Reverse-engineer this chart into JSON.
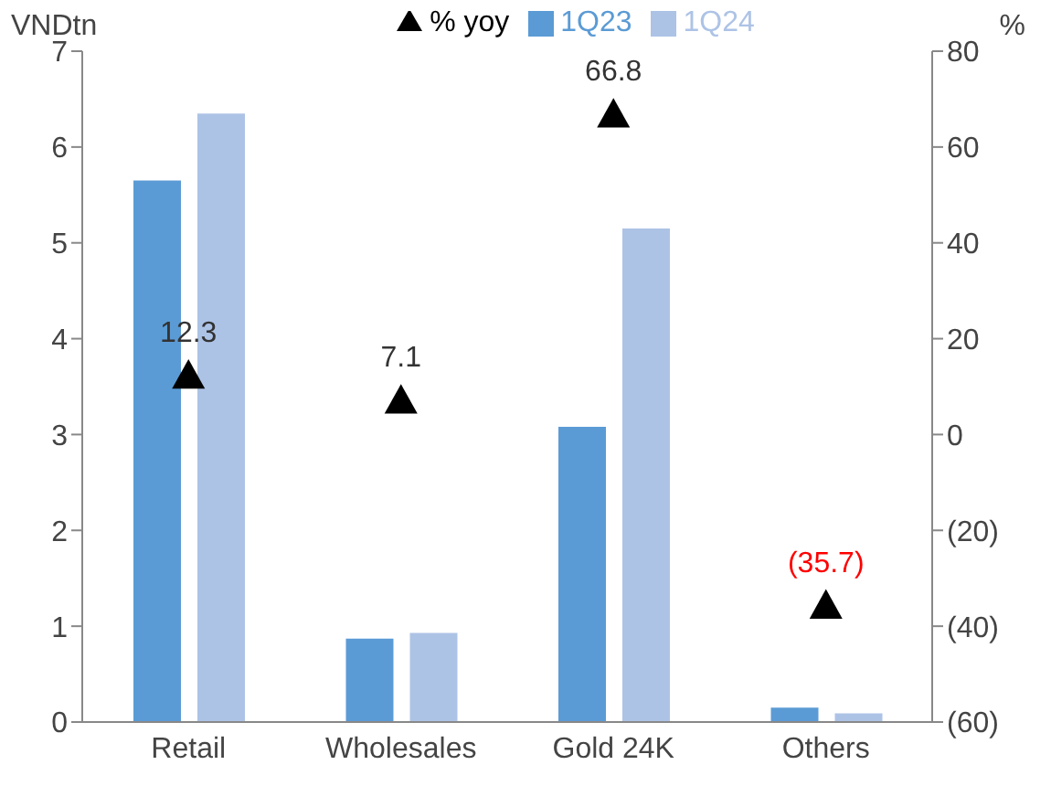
{
  "chart_data": {
    "type": "bar",
    "categories": [
      "Retail",
      "Wholesales",
      "Gold 24K",
      "Others"
    ],
    "ylabel": "VNDtn",
    "y2label": "%",
    "legend": "top",
    "grid": false,
    "marker": "triangle",
    "ylim": [
      0,
      7
    ],
    "yticks": [
      0,
      1,
      2,
      3,
      4,
      5,
      6,
      7
    ],
    "y2lim": [
      -60,
      80
    ],
    "y2ticks": [
      {
        "value": -60,
        "label": "(60)"
      },
      {
        "value": -40,
        "label": "(40)"
      },
      {
        "value": -20,
        "label": "(20)"
      },
      0,
      20,
      40,
      60,
      80
    ],
    "series": [
      {
        "name": "1Q23",
        "color": "#5b9bd5",
        "values": [
          5.65,
          0.87,
          3.08,
          0.15
        ]
      },
      {
        "name": "1Q24",
        "color": "#adc3e6",
        "values": [
          6.35,
          0.93,
          5.15,
          0.09
        ]
      },
      {
        "name": "% yoy",
        "type": "scatter",
        "axis": "y2",
        "color": "#000000",
        "values": [
          12.3,
          7.1,
          66.8,
          -35.7
        ],
        "value_labels": [
          "12.3",
          "7.1",
          "66.8",
          "(35.7)"
        ]
      }
    ]
  }
}
